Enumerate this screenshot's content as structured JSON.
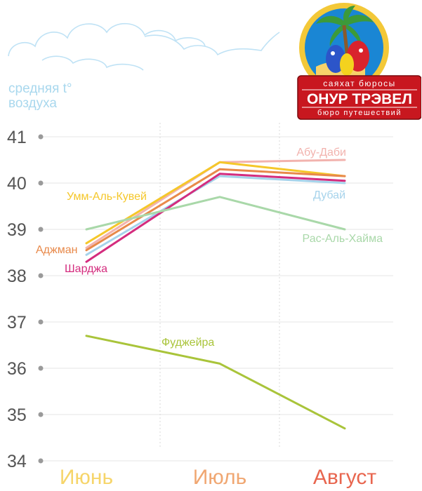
{
  "chart_data": {
    "type": "line",
    "ylabel_lines": [
      "средняя t°",
      "воздуха"
    ],
    "categories": [
      "Июнь",
      "Июль",
      "Август"
    ],
    "category_colors": [
      "#f6d56a",
      "#f0a772",
      "#e8664f"
    ],
    "yticks": [
      "41",
      "40",
      "39",
      "38",
      "37",
      "36",
      "35",
      "34"
    ],
    "ylim": [
      34,
      41
    ],
    "grid": "horizontal",
    "series": [
      {
        "name": "Абу-Даби",
        "color": "#f2b3ae",
        "values": [
          38.6,
          40.45,
          40.5
        ]
      },
      {
        "name": "Умм-Аль-Кувей",
        "color": "#f5c72a",
        "values": [
          38.7,
          40.45,
          40.15
        ]
      },
      {
        "name": "Аджман",
        "color": "#e8894a",
        "values": [
          38.55,
          40.3,
          40.15
        ]
      },
      {
        "name": "Дубай",
        "color": "#a6d3eb",
        "values": [
          38.45,
          40.15,
          40.0
        ]
      },
      {
        "name": "Шарджа",
        "color": "#d42c7e",
        "values": [
          38.3,
          40.2,
          40.05
        ]
      },
      {
        "name": "Рас-Аль-Хайма",
        "color": "#a9d8a9",
        "values": [
          39.0,
          39.7,
          39.0
        ]
      },
      {
        "name": "Фуджейра",
        "color": "#a9c43a",
        "values": [
          36.7,
          36.1,
          34.7
        ]
      }
    ]
  },
  "logo": {
    "top_text": "саяхат бюросы",
    "main_text": "ОНУР ТРЭВЕЛ",
    "bottom_text": "бюро путешествий"
  }
}
